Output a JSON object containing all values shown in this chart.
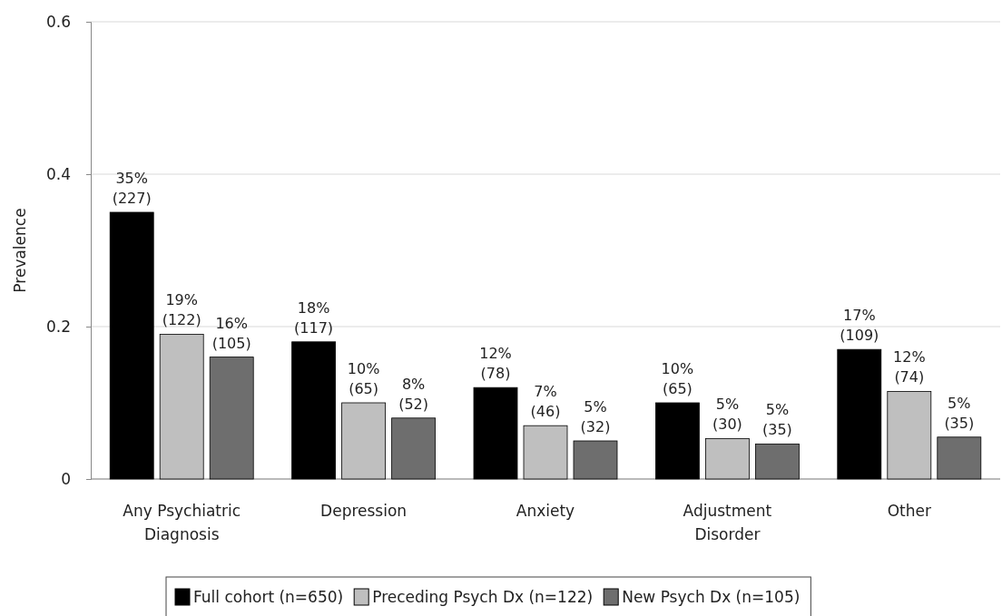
{
  "chart_data": {
    "type": "bar",
    "ylabel": "Prevalence",
    "categories": [
      "Any Psychiatric Diagnosis",
      "Depression",
      "Anxiety",
      "Adjustment Disorder",
      "Other"
    ],
    "series": [
      {
        "name": "Full cohort (n=650)",
        "color": "#000000",
        "values": [
          0.35,
          0.18,
          0.12,
          0.1,
          0.17
        ],
        "value_labels": [
          "35% (227)",
          "18% (117)",
          "12% (78)",
          "10% (65)",
          "17% (109)"
        ]
      },
      {
        "name": "Preceding Psych Dx (n=122)",
        "color": "#bfbfbf",
        "values": [
          0.19,
          0.1,
          0.07,
          0.053,
          0.115
        ],
        "value_labels": [
          "19% (122)",
          "10% (65)",
          "7% (46)",
          "5% (30)",
          "12% (74)"
        ]
      },
      {
        "name": "New Psych Dx (n=105)",
        "color": "#6e6e6e",
        "values": [
          0.16,
          0.08,
          0.05,
          0.046,
          0.055
        ],
        "value_labels": [
          "16% (105)",
          "8% (52)",
          "5% (32)",
          "5% (35)",
          "5% (35)"
        ]
      }
    ],
    "ylim": [
      0,
      0.6
    ],
    "yticks": [
      {
        "value": 0,
        "label": "0"
      },
      {
        "value": 0.2,
        "label": "0.2"
      },
      {
        "value": 0.4,
        "label": "0.4"
      },
      {
        "value": 0.6,
        "label": "0.6"
      }
    ],
    "grid": "y",
    "legend": "bottom"
  }
}
